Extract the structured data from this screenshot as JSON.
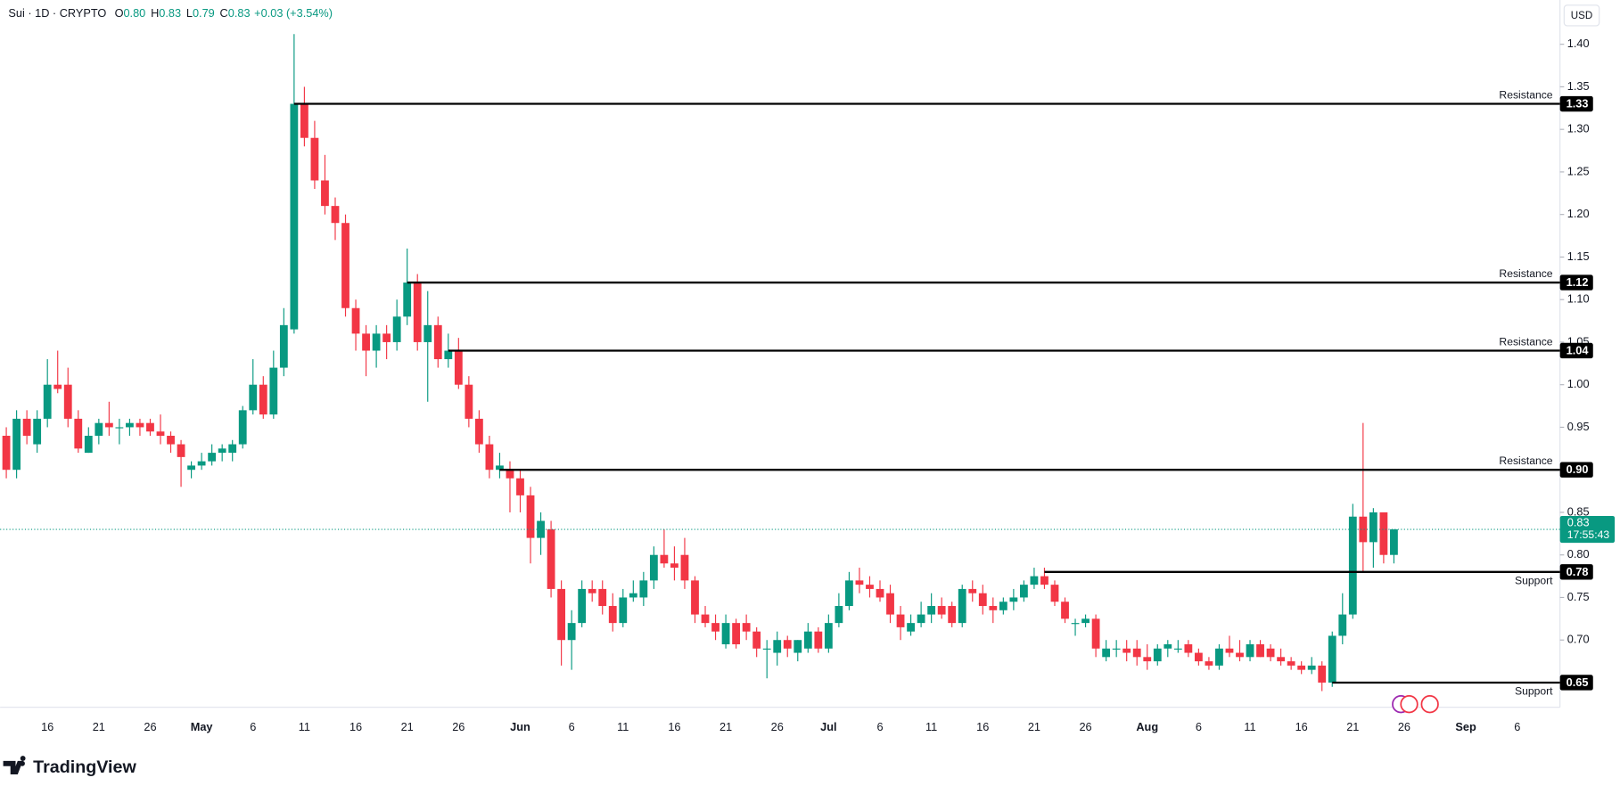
{
  "chart_data": {
    "type": "candlestick",
    "title": "Sui · 1D · CRYPTO",
    "ohlc": [
      {
        "label": "O",
        "value": "0.80"
      },
      {
        "label": "H",
        "value": "0.83"
      },
      {
        "label": "L",
        "value": "0.79"
      },
      {
        "label": "C",
        "value": "0.83"
      }
    ],
    "change": "+0.03 (+3.54%)",
    "currency": "USD",
    "brand": "TradingView",
    "up_color": "#089981",
    "down_color": "#f23645",
    "categories": [
      null,
      null,
      null,
      null,
      "16",
      null,
      null,
      null,
      null,
      "21",
      null,
      null,
      null,
      null,
      "26",
      null,
      null,
      null,
      null,
      "May",
      null,
      null,
      null,
      null,
      "6",
      null,
      null,
      null,
      null,
      "11",
      null,
      null,
      null,
      null,
      "16",
      null,
      null,
      null,
      null,
      "21",
      null,
      null,
      null,
      null,
      "26",
      null,
      null,
      null,
      null,
      null,
      "Jun",
      null,
      null,
      null,
      null,
      "6",
      null,
      null,
      null,
      null,
      "11",
      null,
      null,
      null,
      null,
      "16",
      null,
      null,
      null,
      null,
      "21",
      null,
      null,
      null,
      null,
      "26",
      null,
      null,
      null,
      null,
      "Jul",
      null,
      null,
      null,
      null,
      "6",
      null,
      null,
      null,
      null,
      "11",
      null,
      null,
      null,
      null,
      "16",
      null,
      null,
      null,
      null,
      "21",
      null,
      null,
      null,
      null,
      "26",
      null,
      null,
      null,
      null,
      null,
      "Aug",
      null,
      null,
      null,
      null,
      "6",
      null,
      null,
      null,
      null,
      "11",
      null,
      null,
      null,
      null,
      "16",
      null,
      null,
      null,
      null,
      "21",
      null,
      null,
      null,
      null,
      "26",
      null,
      null,
      null,
      null,
      null,
      "Sep",
      null,
      null,
      null,
      null,
      "6",
      null,
      null,
      null,
      null
    ],
    "open": [
      0.94,
      0.9,
      0.96,
      0.93,
      0.96,
      1.0,
      1.0,
      0.96,
      0.92,
      0.94,
      0.955,
      0.95,
      0.95,
      0.955,
      0.955,
      0.945,
      0.94,
      0.93,
      0.9,
      0.905,
      0.91,
      0.92,
      0.92,
      0.93,
      0.97,
      1.0,
      0.965,
      1.02,
      1.065,
      1.33,
      1.29,
      1.24,
      1.21,
      1.19,
      1.09,
      1.06,
      1.04,
      1.06,
      1.05,
      1.08,
      1.12,
      1.05,
      1.07,
      1.03,
      1.04,
      1.0,
      0.96,
      0.93,
      0.9,
      0.9,
      0.89,
      0.87,
      0.82,
      0.83,
      0.76,
      0.7,
      0.72,
      0.76,
      0.76,
      0.74,
      0.72,
      0.75,
      0.75,
      0.77,
      0.8,
      0.79,
      0.8,
      0.77,
      0.73,
      0.72,
      0.695,
      0.72,
      0.72,
      0.71,
      0.69,
      0.685,
      0.7,
      0.685,
      0.69,
      0.71,
      0.69,
      0.72,
      0.74,
      0.77,
      0.765,
      0.76,
      0.755,
      0.73,
      0.71,
      0.72,
      0.73,
      0.74,
      0.74,
      0.72,
      0.76,
      0.755,
      0.74,
      0.735,
      0.745,
      0.75,
      0.765,
      0.775,
      0.765,
      0.745,
      0.72,
      0.72,
      0.725,
      0.68,
      0.69,
      0.69,
      0.69,
      0.68,
      0.675,
      0.69,
      0.69,
      0.695,
      0.685,
      0.675,
      0.67,
      0.69,
      0.685,
      0.68,
      0.695,
      0.69,
      0.68,
      0.675,
      0.67,
      0.665,
      0.67,
      0.65,
      0.705,
      0.73,
      0.845,
      0.815,
      0.85,
      0.8,
      null,
      null,
      null,
      null,
      null,
      null,
      null,
      null,
      null,
      null,
      null,
      null,
      null,
      null,
      null,
      null
    ],
    "high": [
      0.95,
      0.97,
      0.97,
      0.97,
      1.03,
      1.04,
      1.02,
      0.97,
      0.95,
      0.96,
      0.98,
      0.96,
      0.96,
      0.96,
      0.96,
      0.965,
      0.945,
      0.935,
      0.91,
      0.92,
      0.93,
      0.93,
      0.935,
      0.975,
      1.03,
      1.01,
      1.04,
      1.09,
      1.412,
      1.35,
      1.31,
      1.27,
      1.22,
      1.2,
      1.1,
      1.07,
      1.07,
      1.07,
      1.1,
      1.16,
      1.13,
      1.11,
      1.08,
      1.06,
      1.055,
      1.01,
      0.97,
      0.94,
      0.92,
      0.91,
      0.9,
      0.88,
      0.85,
      0.84,
      0.77,
      0.735,
      0.77,
      0.77,
      0.77,
      0.755,
      0.76,
      0.77,
      0.78,
      0.81,
      0.83,
      0.81,
      0.82,
      0.775,
      0.74,
      0.73,
      0.73,
      0.725,
      0.73,
      0.715,
      0.7,
      0.71,
      0.705,
      0.7,
      0.72,
      0.715,
      0.73,
      0.755,
      0.78,
      0.785,
      0.775,
      0.77,
      0.765,
      0.74,
      0.73,
      0.745,
      0.755,
      0.75,
      0.745,
      0.765,
      0.77,
      0.765,
      0.75,
      0.75,
      0.76,
      0.77,
      0.785,
      0.785,
      0.77,
      0.75,
      0.725,
      0.73,
      0.73,
      0.7,
      0.7,
      0.7,
      0.7,
      0.695,
      0.695,
      0.7,
      0.7,
      0.7,
      0.69,
      0.68,
      0.695,
      0.705,
      0.7,
      0.7,
      0.7,
      0.695,
      0.69,
      0.68,
      0.675,
      0.68,
      0.675,
      0.71,
      0.755,
      0.86,
      0.955,
      0.855,
      0.85,
      0.83,
      null,
      null,
      null,
      null,
      null,
      null,
      null,
      null,
      null,
      null,
      null,
      null,
      null,
      null,
      null,
      null
    ],
    "low": [
      0.89,
      0.89,
      0.93,
      0.92,
      0.95,
      0.99,
      0.95,
      0.92,
      0.92,
      0.93,
      0.94,
      0.93,
      0.94,
      0.94,
      0.94,
      0.93,
      0.92,
      0.88,
      0.89,
      0.9,
      0.905,
      0.91,
      0.91,
      0.925,
      0.965,
      0.96,
      0.96,
      1.01,
      1.06,
      1.28,
      1.23,
      1.2,
      1.17,
      1.08,
      1.04,
      1.01,
      1.02,
      1.03,
      1.04,
      1.07,
      1.04,
      0.98,
      1.02,
      1.02,
      0.995,
      0.95,
      0.92,
      0.89,
      0.89,
      0.85,
      0.85,
      0.79,
      0.8,
      0.75,
      0.67,
      0.665,
      0.715,
      0.745,
      0.73,
      0.71,
      0.715,
      0.745,
      0.74,
      0.76,
      0.785,
      0.77,
      0.76,
      0.72,
      0.715,
      0.7,
      0.69,
      0.69,
      0.7,
      0.68,
      0.655,
      0.67,
      0.68,
      0.675,
      0.685,
      0.685,
      0.685,
      0.715,
      0.735,
      0.755,
      0.75,
      0.745,
      0.72,
      0.7,
      0.705,
      0.715,
      0.72,
      0.725,
      0.715,
      0.715,
      0.745,
      0.73,
      0.72,
      0.73,
      0.735,
      0.745,
      0.76,
      0.76,
      0.74,
      0.72,
      0.705,
      0.715,
      0.68,
      0.675,
      0.68,
      0.675,
      0.67,
      0.665,
      0.67,
      0.68,
      0.685,
      0.68,
      0.67,
      0.665,
      0.665,
      0.68,
      0.675,
      0.675,
      0.68,
      0.675,
      0.67,
      0.665,
      0.66,
      0.66,
      0.64,
      0.645,
      0.695,
      0.725,
      0.78,
      0.785,
      0.79,
      0.79,
      null,
      null,
      null,
      null,
      null,
      null,
      null,
      null,
      null,
      null,
      null,
      null,
      null,
      null,
      null,
      null
    ],
    "close": [
      0.9,
      0.96,
      0.94,
      0.96,
      1.0,
      0.995,
      0.96,
      0.925,
      0.94,
      0.955,
      0.95,
      0.95,
      0.955,
      0.95,
      0.945,
      0.94,
      0.93,
      0.915,
      0.905,
      0.91,
      0.92,
      0.925,
      0.93,
      0.97,
      1.0,
      0.965,
      1.02,
      1.07,
      1.33,
      1.29,
      1.24,
      1.21,
      1.19,
      1.09,
      1.06,
      1.04,
      1.06,
      1.05,
      1.08,
      1.12,
      1.05,
      1.07,
      1.03,
      1.04,
      1.0,
      0.96,
      0.93,
      0.9,
      0.905,
      0.89,
      0.87,
      0.82,
      0.84,
      0.76,
      0.7,
      0.72,
      0.76,
      0.755,
      0.74,
      0.72,
      0.75,
      0.755,
      0.77,
      0.8,
      0.79,
      0.785,
      0.77,
      0.73,
      0.72,
      0.71,
      0.72,
      0.695,
      0.71,
      0.69,
      0.69,
      0.7,
      0.69,
      0.7,
      0.71,
      0.69,
      0.72,
      0.74,
      0.77,
      0.765,
      0.76,
      0.75,
      0.73,
      0.715,
      0.72,
      0.73,
      0.74,
      0.73,
      0.72,
      0.76,
      0.755,
      0.74,
      0.735,
      0.745,
      0.75,
      0.765,
      0.775,
      0.765,
      0.745,
      0.725,
      0.72,
      0.725,
      0.69,
      0.69,
      0.69,
      0.685,
      0.68,
      0.675,
      0.69,
      0.695,
      0.69,
      0.685,
      0.675,
      0.67,
      0.69,
      0.685,
      0.68,
      0.695,
      0.68,
      0.68,
      0.675,
      0.67,
      0.665,
      0.67,
      0.65,
      0.705,
      0.73,
      0.845,
      0.815,
      0.85,
      0.8,
      0.83,
      null,
      null,
      null,
      null,
      null,
      null,
      null,
      null,
      null,
      null,
      null,
      null,
      null,
      null,
      null,
      null
    ],
    "ylim": [
      0.621,
      1.452
    ],
    "yticks": [
      {
        "value": 0.7,
        "label": "0.70"
      },
      {
        "value": 0.75,
        "label": "0.75"
      },
      {
        "value": 0.8,
        "label": "0.80"
      },
      {
        "value": 0.85,
        "label": "0.85"
      },
      {
        "value": 0.9,
        "label": "0.90"
      },
      {
        "value": 0.95,
        "label": "0.95"
      },
      {
        "value": 1.0,
        "label": "1.00"
      },
      {
        "value": 1.05,
        "label": "1.05"
      },
      {
        "value": 1.1,
        "label": "1.10"
      },
      {
        "value": 1.15,
        "label": "1.15"
      },
      {
        "value": 1.2,
        "label": "1.20"
      },
      {
        "value": 1.25,
        "label": "1.25"
      },
      {
        "value": 1.3,
        "label": "1.30"
      },
      {
        "value": 1.35,
        "label": "1.35"
      },
      {
        "value": 1.4,
        "label": "1.40"
      }
    ],
    "grid": false,
    "levels": {
      "names": [
        "Resistance",
        "Resistance",
        "Resistance",
        "Resistance",
        "Support",
        "Support"
      ],
      "values": [
        1.33,
        1.12,
        1.04,
        0.9,
        0.78,
        0.65
      ],
      "value_labels": [
        "1.33",
        "1.12",
        "1.04",
        "0.90",
        "0.78",
        "0.65"
      ],
      "x": [
        28,
        39,
        43,
        48,
        101,
        129
      ]
    },
    "last_price": 0.83,
    "countdown": "17:55:43"
  }
}
